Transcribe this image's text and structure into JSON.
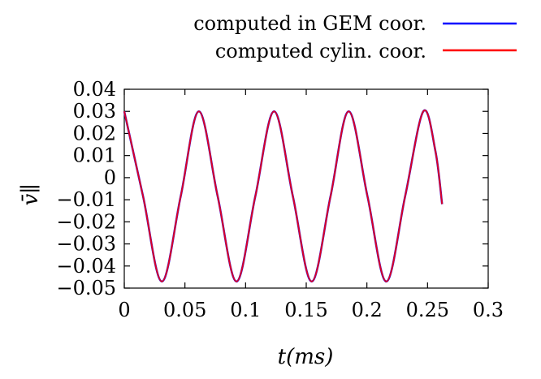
{
  "chart_data": {
    "type": "line",
    "xlabel": "t(ms)",
    "ylabel": "v̄∥",
    "xlim": [
      0,
      0.3
    ],
    "ylim": [
      -0.05,
      0.04
    ],
    "x_ticks": [
      0,
      0.05,
      0.1,
      0.15,
      0.2,
      0.25,
      0.3
    ],
    "x_tick_labels": [
      "0",
      "0.05",
      "0.1",
      "0.15",
      "0.2",
      "0.25",
      "0.3"
    ],
    "y_ticks": [
      0.04,
      0.03,
      0.02,
      0.01,
      0,
      -0.01,
      -0.02,
      -0.03,
      -0.04,
      -0.05
    ],
    "y_tick_labels": [
      "0.04",
      "0.03",
      "0.02",
      "0.01",
      "0",
      "−0.01",
      "−0.02",
      "−0.03",
      "−0.04",
      "−0.05"
    ],
    "grid": false,
    "legend_position": "top-right, outside above plot",
    "series": [
      {
        "name": "computed in GEM coor.",
        "color": "#0000ff",
        "x": [
          0,
          0.0155,
          0.031,
          0.0465,
          0.0615,
          0.077,
          0.0925,
          0.108,
          0.1235,
          0.139,
          0.1545,
          0.17,
          0.185,
          0.2005,
          0.216,
          0.2315,
          0.2465,
          0.2565,
          0.262
        ],
        "y": [
          0.03,
          -0.0085,
          -0.047,
          -0.0085,
          0.03,
          -0.0085,
          -0.047,
          -0.0085,
          0.03,
          -0.0085,
          -0.047,
          -0.0085,
          0.03,
          -0.0085,
          -0.047,
          -0.0085,
          0.03,
          0.012,
          -0.012
        ]
      },
      {
        "name": "computed cylin. coor.",
        "color": "#ff0000",
        "x": [
          0,
          0.0155,
          0.031,
          0.0465,
          0.0615,
          0.077,
          0.0925,
          0.108,
          0.1235,
          0.139,
          0.1545,
          0.17,
          0.185,
          0.2005,
          0.216,
          0.2315,
          0.2465,
          0.2565,
          0.262
        ],
        "y": [
          0.03,
          -0.0085,
          -0.047,
          -0.0085,
          0.03,
          -0.0085,
          -0.047,
          -0.0085,
          0.03,
          -0.0085,
          -0.047,
          -0.0085,
          0.03,
          -0.0085,
          -0.047,
          -0.0085,
          0.03,
          0.012,
          -0.012
        ]
      }
    ]
  }
}
